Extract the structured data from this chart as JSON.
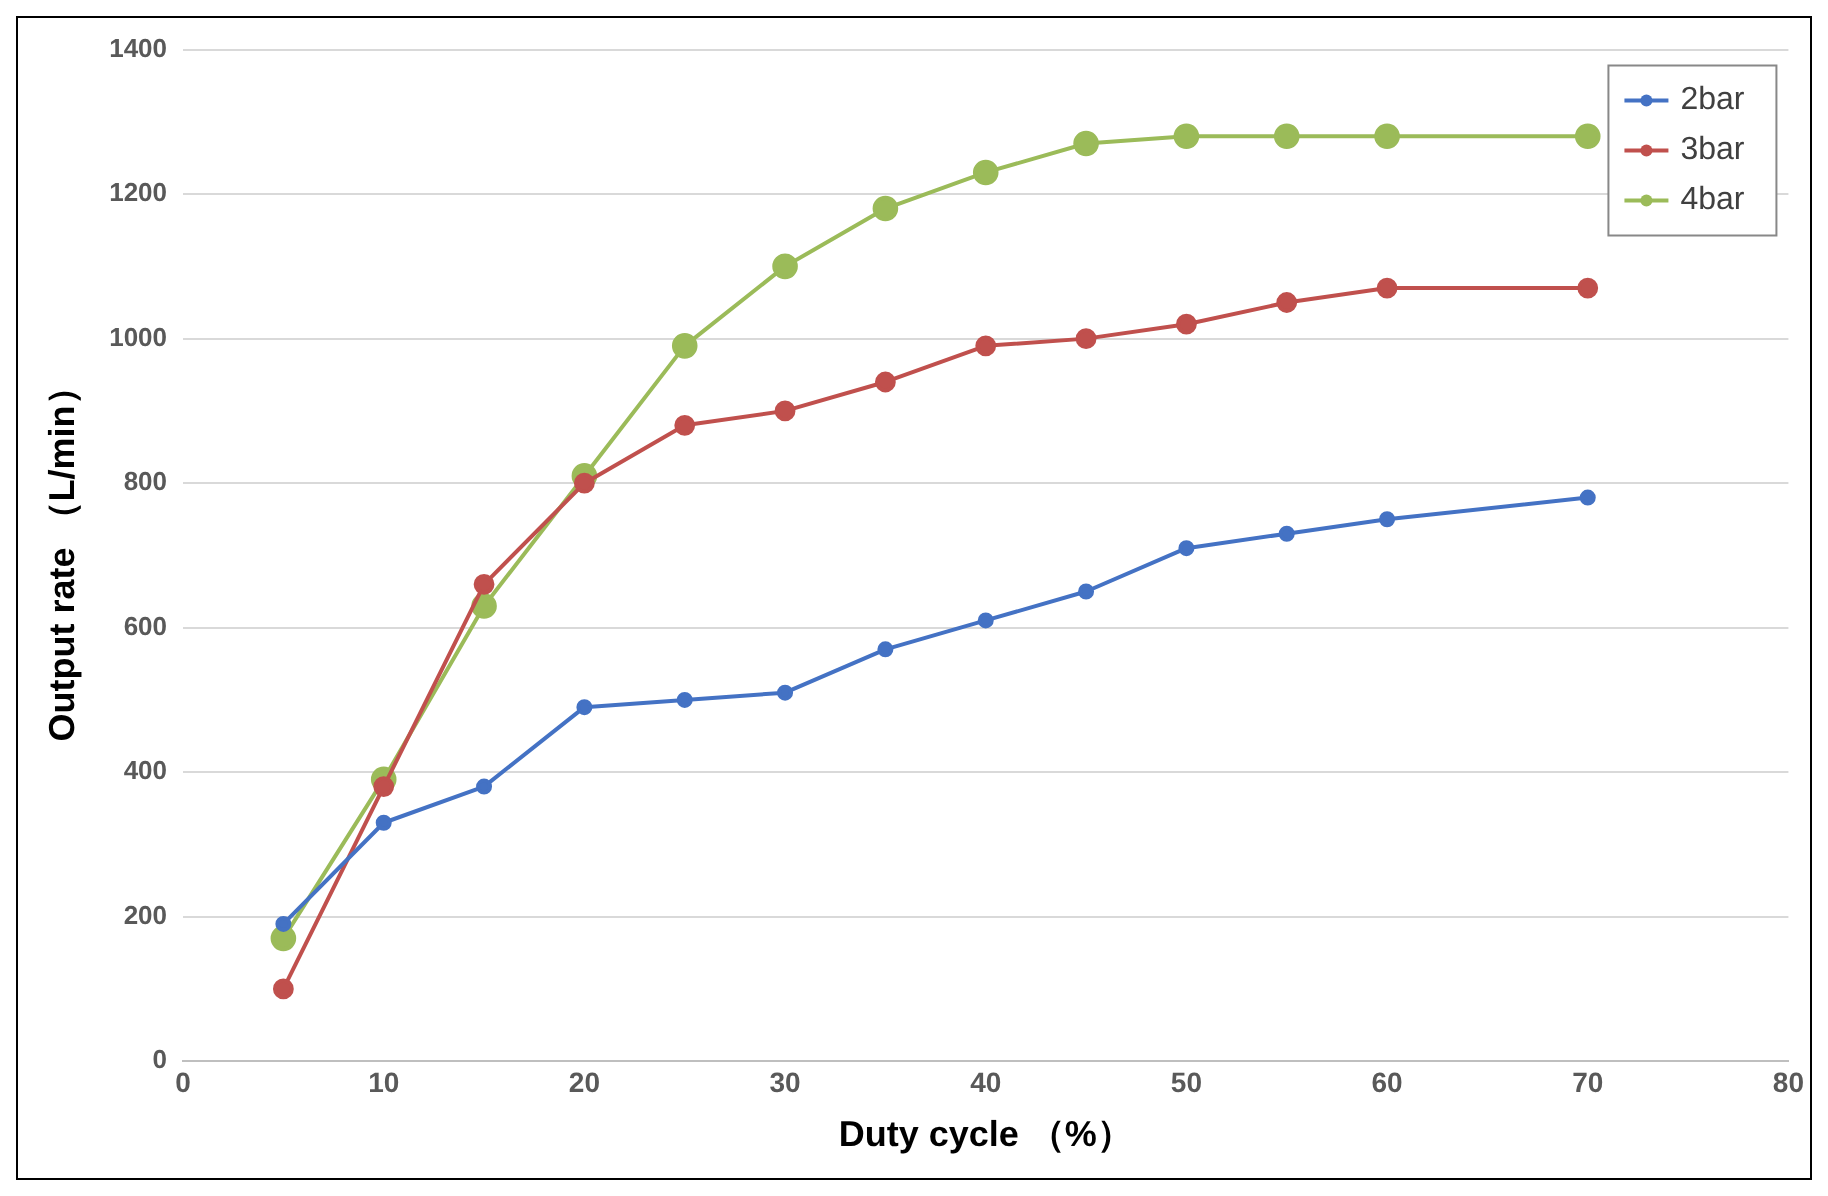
{
  "chart_data": {
    "type": "line",
    "xlabel": "Duty cycle （%）",
    "ylabel": "Output rate （L/min）",
    "x": [
      5,
      10,
      15,
      20,
      25,
      30,
      35,
      40,
      45,
      50,
      55,
      60,
      70
    ],
    "series": [
      {
        "name": "2bar",
        "color": "#4472c4",
        "values": [
          190,
          330,
          380,
          490,
          500,
          510,
          570,
          610,
          650,
          710,
          730,
          750,
          780
        ]
      },
      {
        "name": "3bar",
        "color": "#c0504d",
        "values": [
          100,
          380,
          660,
          800,
          880,
          900,
          940,
          990,
          1000,
          1020,
          1050,
          1070,
          1070
        ]
      },
      {
        "name": "4bar",
        "color": "#9bbb59",
        "values": [
          170,
          390,
          630,
          810,
          990,
          1100,
          1180,
          1230,
          1270,
          1280,
          1280,
          1280,
          1280
        ]
      }
    ],
    "xlim": [
      0,
      80
    ],
    "xticks": [
      0,
      10,
      20,
      30,
      40,
      50,
      60,
      70,
      80
    ],
    "ylim": [
      0,
      1400
    ],
    "yticks": [
      0,
      200,
      400,
      600,
      800,
      1000,
      1200,
      1400
    ],
    "grid": "y",
    "legend": "top right",
    "marker": "circle",
    "line_style": "solid"
  }
}
